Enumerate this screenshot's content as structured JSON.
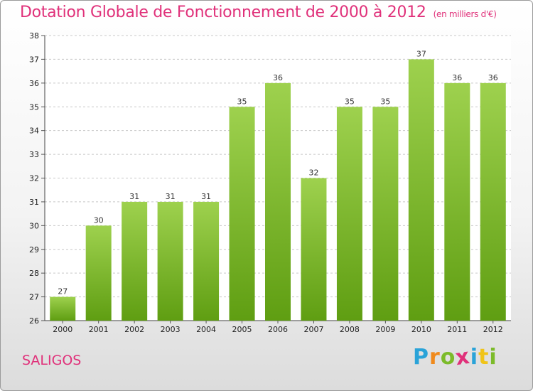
{
  "chart_data": {
    "type": "bar",
    "title": "Dotation Globale de Fonctionnement de 2000 à 2012",
    "subtitle": "(en milliers d'€)",
    "categories": [
      "2000",
      "2001",
      "2002",
      "2003",
      "2004",
      "2005",
      "2006",
      "2007",
      "2008",
      "2009",
      "2010",
      "2011",
      "2012"
    ],
    "values": [
      27,
      30,
      31,
      31,
      31,
      35,
      36,
      32,
      35,
      35,
      37,
      36,
      36
    ],
    "ylim": [
      26,
      38
    ],
    "yticks": [
      26,
      27,
      28,
      29,
      30,
      31,
      32,
      33,
      34,
      35,
      36,
      37,
      38
    ],
    "grid": "horizontal-dashed",
    "bar_color_top": "#9ed14e",
    "bar_color_bottom": "#5f9e12"
  },
  "footer": {
    "commune": "SALIGOS",
    "logo": [
      "P",
      "r",
      "o",
      "x",
      "i",
      "t",
      "i"
    ],
    "logo_colors": [
      "#2aa3d8",
      "#f08a1c",
      "#7cbb2a",
      "#e0317a",
      "#2aa3d8",
      "#f0c419",
      "#7cbb2a"
    ]
  },
  "colors": {
    "accent": "#e0317a"
  }
}
